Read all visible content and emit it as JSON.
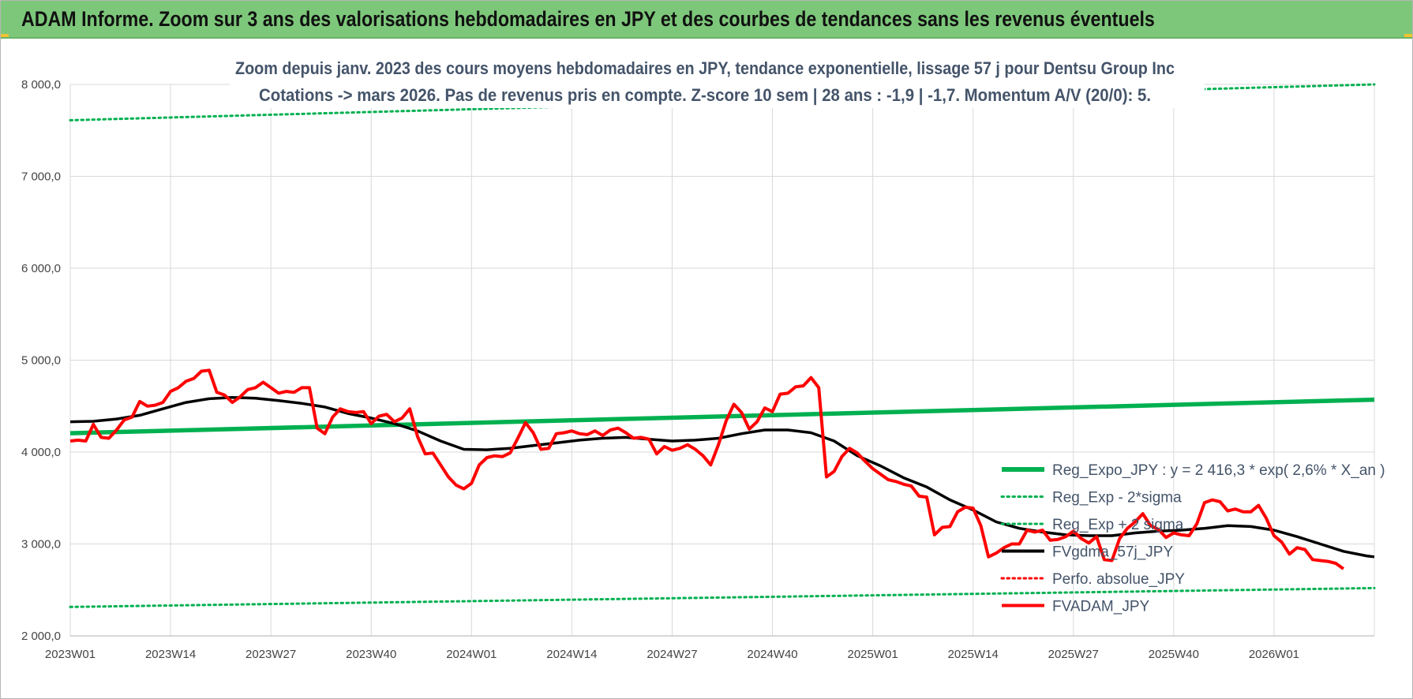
{
  "header": {
    "title": "ADAM Informe. Zoom sur 3 ans des valorisations hebdomadaires en JPY et des courbes de tendances sans les revenus éventuels"
  },
  "chart_data": {
    "type": "line",
    "title_line1": "Zoom depuis janv. 2023 des cours moyens hebdomadaires en JPY, tendance exponentielle, lissage 57 j pour Dentsu Group Inc",
    "title_line2": "Cotations -> mars 2026. Pas de revenus pris en compte. Z-score 10 sem | 28 ans : -1,9 | -1,7. Momentum A/V (20/0): 5.",
    "xlabel": "",
    "ylabel": "",
    "ylim": [
      2000,
      8000
    ],
    "y_ticks": [
      "2 000,0",
      "3 000,0",
      "4 000,0",
      "5 000,0",
      "6 000,0",
      "7 000,0",
      "8 000,0"
    ],
    "x_tick_labels": [
      "2023W01",
      "2023W14",
      "2023W27",
      "2023W40",
      "2024W01",
      "2024W14",
      "2024W27",
      "2024W40",
      "2025W01",
      "2025W14",
      "2025W27",
      "2025W40",
      "2026W01"
    ],
    "x_tick_weeks": [
      0,
      13,
      26,
      39,
      52,
      65,
      78,
      91,
      104,
      117,
      130,
      143,
      156
    ],
    "x_range_weeks": [
      0,
      169
    ],
    "grid": true,
    "legend_position": "bottom-right",
    "series": [
      {
        "name": "Reg_Expo_JPY : y = 2 416,3 * exp( 2,6% *  X_an )",
        "color": "#00b050",
        "style": "solid",
        "width": 5.5,
        "points": [
          [
            0,
            4205
          ],
          [
            169,
            4570
          ]
        ]
      },
      {
        "name": "Reg_Exp - 2*sigma",
        "color": "#00b050",
        "style": "dotted",
        "width": 3,
        "points": [
          [
            0,
            2315
          ],
          [
            169,
            2520
          ]
        ]
      },
      {
        "name": "Reg_Exp + 2 sigma",
        "color": "#00b050",
        "style": "dotted",
        "width": 3,
        "points": [
          [
            0,
            7610
          ],
          [
            169,
            8000
          ]
        ]
      },
      {
        "name": "FVgdma_57j_JPY",
        "color": "#000000",
        "style": "solid",
        "width": 3.5,
        "points": [
          [
            0,
            4330
          ],
          [
            3,
            4335
          ],
          [
            6,
            4360
          ],
          [
            9,
            4400
          ],
          [
            12,
            4470
          ],
          [
            15,
            4540
          ],
          [
            18,
            4580
          ],
          [
            21,
            4595
          ],
          [
            24,
            4585
          ],
          [
            27,
            4560
          ],
          [
            30,
            4530
          ],
          [
            33,
            4490
          ],
          [
            36,
            4420
          ],
          [
            39,
            4370
          ],
          [
            42,
            4310
          ],
          [
            45,
            4230
          ],
          [
            48,
            4120
          ],
          [
            51,
            4030
          ],
          [
            54,
            4025
          ],
          [
            57,
            4040
          ],
          [
            60,
            4070
          ],
          [
            63,
            4100
          ],
          [
            66,
            4130
          ],
          [
            69,
            4150
          ],
          [
            72,
            4160
          ],
          [
            75,
            4140
          ],
          [
            78,
            4120
          ],
          [
            81,
            4130
          ],
          [
            84,
            4150
          ],
          [
            87,
            4200
          ],
          [
            90,
            4240
          ],
          [
            93,
            4240
          ],
          [
            96,
            4210
          ],
          [
            99,
            4120
          ],
          [
            102,
            3960
          ],
          [
            105,
            3850
          ],
          [
            108,
            3720
          ],
          [
            111,
            3620
          ],
          [
            114,
            3480
          ],
          [
            117,
            3370
          ],
          [
            120,
            3240
          ],
          [
            123,
            3170
          ],
          [
            126,
            3130
          ],
          [
            129,
            3100
          ],
          [
            132,
            3090
          ],
          [
            135,
            3090
          ],
          [
            138,
            3120
          ],
          [
            141,
            3140
          ],
          [
            144,
            3150
          ],
          [
            147,
            3170
          ],
          [
            150,
            3200
          ],
          [
            153,
            3190
          ],
          [
            156,
            3150
          ],
          [
            159,
            3080
          ],
          [
            162,
            3000
          ],
          [
            165,
            2920
          ],
          [
            168,
            2870
          ],
          [
            169,
            2860
          ]
        ]
      },
      {
        "name": "Perfo. absolue_JPY",
        "color": "#ff0000",
        "style": "dotted",
        "width": 2,
        "points": []
      },
      {
        "name": "FVADAM_JPY",
        "color": "#ff0000",
        "style": "solid",
        "width": 4,
        "points": [
          [
            0,
            4120
          ],
          [
            1,
            4130
          ],
          [
            2,
            4120
          ],
          [
            3,
            4300
          ],
          [
            4,
            4160
          ],
          [
            5,
            4150
          ],
          [
            6,
            4240
          ],
          [
            7,
            4350
          ],
          [
            8,
            4380
          ],
          [
            9,
            4550
          ],
          [
            10,
            4500
          ],
          [
            11,
            4510
          ],
          [
            12,
            4540
          ],
          [
            13,
            4660
          ],
          [
            14,
            4700
          ],
          [
            15,
            4770
          ],
          [
            16,
            4800
          ],
          [
            17,
            4880
          ],
          [
            18,
            4890
          ],
          [
            19,
            4650
          ],
          [
            20,
            4620
          ],
          [
            21,
            4540
          ],
          [
            22,
            4600
          ],
          [
            23,
            4680
          ],
          [
            24,
            4700
          ],
          [
            25,
            4760
          ],
          [
            26,
            4700
          ],
          [
            27,
            4640
          ],
          [
            28,
            4660
          ],
          [
            29,
            4650
          ],
          [
            30,
            4700
          ],
          [
            31,
            4700
          ],
          [
            32,
            4260
          ],
          [
            33,
            4200
          ],
          [
            34,
            4380
          ],
          [
            35,
            4470
          ],
          [
            36,
            4440
          ],
          [
            37,
            4430
          ],
          [
            38,
            4440
          ],
          [
            39,
            4310
          ],
          [
            40,
            4390
          ],
          [
            41,
            4410
          ],
          [
            42,
            4330
          ],
          [
            43,
            4370
          ],
          [
            44,
            4470
          ],
          [
            45,
            4170
          ],
          [
            46,
            3980
          ],
          [
            47,
            3990
          ],
          [
            48,
            3860
          ],
          [
            49,
            3730
          ],
          [
            50,
            3640
          ],
          [
            51,
            3600
          ],
          [
            52,
            3660
          ],
          [
            53,
            3860
          ],
          [
            54,
            3940
          ],
          [
            55,
            3960
          ],
          [
            56,
            3950
          ],
          [
            57,
            3990
          ],
          [
            58,
            4150
          ],
          [
            59,
            4320
          ],
          [
            60,
            4210
          ],
          [
            61,
            4030
          ],
          [
            62,
            4040
          ],
          [
            63,
            4200
          ],
          [
            64,
            4210
          ],
          [
            65,
            4230
          ],
          [
            66,
            4200
          ],
          [
            67,
            4190
          ],
          [
            68,
            4230
          ],
          [
            69,
            4180
          ],
          [
            70,
            4240
          ],
          [
            71,
            4260
          ],
          [
            72,
            4210
          ],
          [
            73,
            4150
          ],
          [
            74,
            4160
          ],
          [
            75,
            4140
          ],
          [
            76,
            3980
          ],
          [
            77,
            4060
          ],
          [
            78,
            4020
          ],
          [
            79,
            4040
          ],
          [
            80,
            4080
          ],
          [
            81,
            4030
          ],
          [
            82,
            3960
          ],
          [
            83,
            3860
          ],
          [
            84,
            4080
          ],
          [
            85,
            4340
          ],
          [
            86,
            4520
          ],
          [
            87,
            4430
          ],
          [
            88,
            4250
          ],
          [
            89,
            4330
          ],
          [
            90,
            4480
          ],
          [
            91,
            4440
          ],
          [
            92,
            4630
          ],
          [
            93,
            4640
          ],
          [
            94,
            4710
          ],
          [
            95,
            4720
          ],
          [
            96,
            4810
          ],
          [
            97,
            4700
          ],
          [
            98,
            3730
          ],
          [
            99,
            3790
          ],
          [
            100,
            3950
          ],
          [
            101,
            4040
          ],
          [
            102,
            3990
          ],
          [
            103,
            3900
          ],
          [
            104,
            3820
          ],
          [
            105,
            3760
          ],
          [
            106,
            3700
          ],
          [
            107,
            3680
          ],
          [
            108,
            3650
          ],
          [
            109,
            3630
          ],
          [
            110,
            3520
          ],
          [
            111,
            3510
          ],
          [
            112,
            3100
          ],
          [
            113,
            3180
          ],
          [
            114,
            3190
          ],
          [
            115,
            3350
          ],
          [
            116,
            3400
          ],
          [
            117,
            3390
          ],
          [
            118,
            3200
          ],
          [
            119,
            2860
          ],
          [
            120,
            2900
          ],
          [
            121,
            2960
          ],
          [
            122,
            3000
          ],
          [
            123,
            3000
          ],
          [
            124,
            3150
          ],
          [
            125,
            3130
          ],
          [
            126,
            3150
          ],
          [
            127,
            3040
          ],
          [
            128,
            3050
          ],
          [
            129,
            3080
          ],
          [
            130,
            3140
          ],
          [
            131,
            3060
          ],
          [
            132,
            3010
          ],
          [
            133,
            3080
          ],
          [
            134,
            2830
          ],
          [
            135,
            2820
          ],
          [
            136,
            3060
          ],
          [
            137,
            3170
          ],
          [
            138,
            3240
          ],
          [
            139,
            3330
          ],
          [
            140,
            3200
          ],
          [
            141,
            3160
          ],
          [
            142,
            3070
          ],
          [
            143,
            3120
          ],
          [
            144,
            3100
          ],
          [
            145,
            3090
          ],
          [
            146,
            3220
          ],
          [
            147,
            3450
          ],
          [
            148,
            3480
          ],
          [
            149,
            3460
          ],
          [
            150,
            3360
          ],
          [
            151,
            3380
          ],
          [
            152,
            3350
          ],
          [
            153,
            3350
          ],
          [
            154,
            3420
          ],
          [
            155,
            3280
          ],
          [
            156,
            3090
          ],
          [
            157,
            3020
          ],
          [
            158,
            2890
          ],
          [
            159,
            2960
          ],
          [
            160,
            2940
          ],
          [
            161,
            2830
          ],
          [
            162,
            2820
          ],
          [
            163,
            2810
          ],
          [
            164,
            2790
          ],
          [
            165,
            2730
          ]
        ]
      }
    ]
  }
}
